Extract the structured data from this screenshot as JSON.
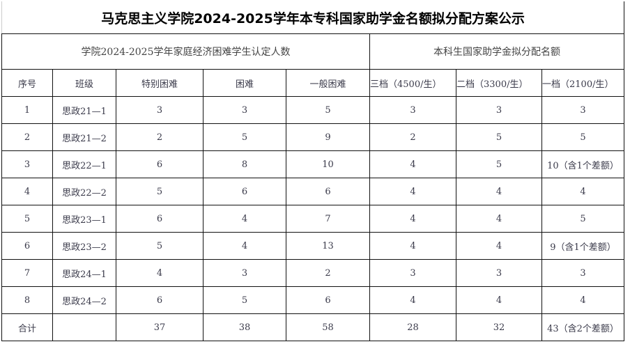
{
  "title": "马克思主义学院2024-2025学年本专科国家助学金名额拟分配方案公示",
  "group_headers": [
    "学院2024-2025学年家庭经济困难学生认定人数",
    "本科生国家助学金拟分配名额"
  ],
  "columns": [
    "序号",
    "班级",
    "特别困难",
    "困难",
    "一般困难",
    "三档（4500/生）",
    "二档（3300/生）",
    "一档（2100/生）"
  ],
  "rows": [
    [
      "1",
      "思政21—1",
      "3",
      "3",
      "5",
      "3",
      "3",
      "3"
    ],
    [
      "2",
      "思政21—2",
      "2",
      "5",
      "9",
      "2",
      "5",
      "5"
    ],
    [
      "3",
      "思政22—1",
      "6",
      "8",
      "10",
      "4",
      "5",
      "10（含1个差额）"
    ],
    [
      "4",
      "思政22—2",
      "5",
      "6",
      "6",
      "4",
      "4",
      "4"
    ],
    [
      "5",
      "思政23—1",
      "6",
      "4",
      "7",
      "4",
      "4",
      "5"
    ],
    [
      "6",
      "思政23—2",
      "5",
      "4",
      "13",
      "4",
      "4",
      "9（含1个差额）"
    ],
    [
      "7",
      "思政24—1",
      "4",
      "3",
      "2",
      "3",
      "3",
      "3"
    ],
    [
      "8",
      "思政24—2",
      "6",
      "5",
      "6",
      "4",
      "4",
      "4"
    ]
  ],
  "total": [
    "合计",
    "",
    "37",
    "38",
    "58",
    "28",
    "32",
    "43（含2个差额）"
  ]
}
